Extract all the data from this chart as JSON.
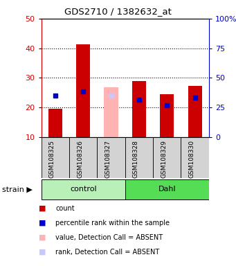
{
  "title": "GDS2710 / 1382632_at",
  "samples": [
    "GSM108325",
    "GSM108326",
    "GSM108327",
    "GSM108328",
    "GSM108329",
    "GSM108330"
  ],
  "groups": [
    "control",
    "control",
    "control",
    "Dahl",
    "Dahl",
    "Dahl"
  ],
  "group_colors": {
    "control": "#b8f0b8",
    "Dahl": "#55dd55"
  },
  "red_values": [
    19.5,
    41.3,
    null,
    28.8,
    24.5,
    27.3
  ],
  "blue_values": [
    24.0,
    25.5,
    null,
    22.7,
    20.7,
    23.3
  ],
  "pink_values": [
    null,
    null,
    26.7,
    null,
    null,
    null
  ],
  "lightblue_values": [
    null,
    null,
    24.0,
    null,
    null,
    null
  ],
  "bar_bottom": 10,
  "ylim_left": [
    10,
    50
  ],
  "ylim_right": [
    0,
    100
  ],
  "yticks_left": [
    10,
    20,
    30,
    40,
    50
  ],
  "yticks_right": [
    0,
    25,
    50,
    75,
    100
  ],
  "ytick_labels_right": [
    "0",
    "25",
    "50",
    "75",
    "100%"
  ],
  "left_color": "#cc0000",
  "right_color": "#0000cc",
  "legend_items": [
    {
      "color": "#cc0000",
      "label": "count"
    },
    {
      "color": "#0000cc",
      "label": "percentile rank within the sample"
    },
    {
      "color": "#ffb3b3",
      "label": "value, Detection Call = ABSENT"
    },
    {
      "color": "#c8c8ff",
      "label": "rank, Detection Call = ABSENT"
    }
  ]
}
